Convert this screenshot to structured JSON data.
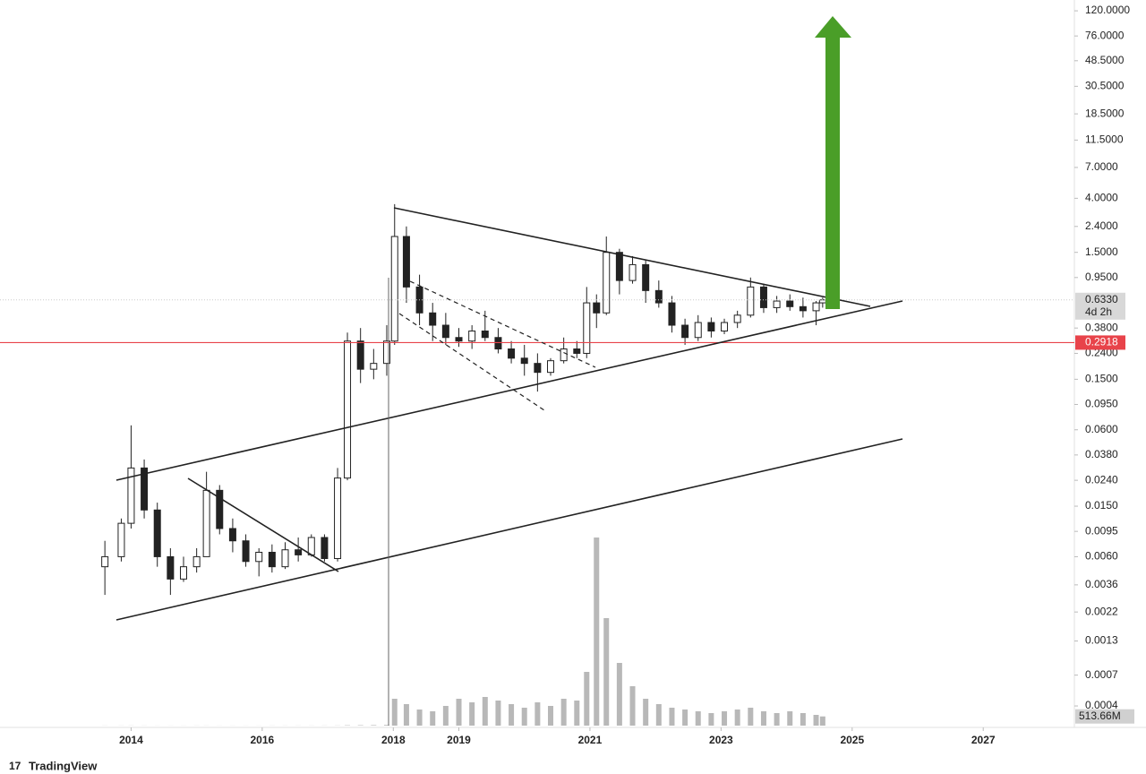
{
  "chart_data": {
    "type": "candlestick",
    "log_y": true,
    "grid": false,
    "up_color": "#ffffff",
    "down_color": "#222222",
    "volume_color": "#b8b8b8",
    "x": [
      2013.6,
      2013.85,
      2014.0,
      2014.2,
      2014.4,
      2014.6,
      2014.8,
      2015.0,
      2015.15,
      2015.35,
      2015.55,
      2015.75,
      2015.95,
      2016.15,
      2016.35,
      2016.55,
      2016.75,
      2016.95,
      2017.15,
      2017.3,
      2017.5,
      2017.7,
      2017.9,
      2018.02,
      2018.2,
      2018.4,
      2018.6,
      2018.8,
      2019.0,
      2019.2,
      2019.4,
      2019.6,
      2019.8,
      2020.0,
      2020.2,
      2020.4,
      2020.6,
      2020.8,
      2020.95,
      2021.1,
      2021.25,
      2021.45,
      2021.65,
      2021.85,
      2022.05,
      2022.25,
      2022.45,
      2022.65,
      2022.85,
      2023.05,
      2023.25,
      2023.45,
      2023.65,
      2023.85,
      2024.05,
      2024.25,
      2024.45,
      2024.55
    ],
    "open": [
      0.005,
      0.006,
      0.011,
      0.03,
      0.014,
      0.006,
      0.004,
      0.005,
      0.006,
      0.02,
      0.01,
      0.008,
      0.0055,
      0.0065,
      0.005,
      0.0068,
      0.0062,
      0.0085,
      0.0058,
      0.025,
      0.3,
      0.18,
      0.2,
      0.3,
      2.0,
      0.8,
      0.5,
      0.4,
      0.32,
      0.3,
      0.36,
      0.32,
      0.26,
      0.22,
      0.2,
      0.17,
      0.21,
      0.26,
      0.24,
      0.6,
      0.5,
      1.5,
      0.9,
      1.2,
      0.75,
      0.6,
      0.4,
      0.32,
      0.42,
      0.36,
      0.42,
      0.48,
      0.8,
      0.55,
      0.62,
      0.56,
      0.52,
      0.6
    ],
    "high": [
      0.008,
      0.012,
      0.065,
      0.035,
      0.016,
      0.007,
      0.006,
      0.007,
      0.028,
      0.022,
      0.012,
      0.009,
      0.007,
      0.0075,
      0.0078,
      0.0085,
      0.009,
      0.009,
      0.03,
      0.35,
      0.38,
      0.26,
      0.4,
      3.6,
      2.4,
      1.0,
      0.6,
      0.5,
      0.38,
      0.4,
      0.52,
      0.38,
      0.3,
      0.28,
      0.24,
      0.22,
      0.32,
      0.3,
      0.8,
      0.7,
      2.0,
      1.6,
      1.4,
      1.3,
      0.9,
      0.68,
      0.45,
      0.48,
      0.46,
      0.45,
      0.52,
      0.95,
      0.85,
      0.68,
      0.7,
      0.66,
      0.62,
      0.66
    ],
    "low": [
      0.003,
      0.0055,
      0.01,
      0.012,
      0.005,
      0.003,
      0.0038,
      0.0045,
      0.006,
      0.009,
      0.0065,
      0.005,
      0.0042,
      0.0045,
      0.0048,
      0.0055,
      0.006,
      0.0055,
      0.0055,
      0.024,
      0.14,
      0.15,
      0.16,
      0.28,
      0.6,
      0.4,
      0.3,
      0.28,
      0.27,
      0.26,
      0.3,
      0.24,
      0.2,
      0.16,
      0.12,
      0.16,
      0.2,
      0.22,
      0.22,
      0.38,
      0.48,
      0.7,
      0.85,
      0.6,
      0.55,
      0.35,
      0.28,
      0.3,
      0.32,
      0.34,
      0.38,
      0.46,
      0.5,
      0.5,
      0.52,
      0.46,
      0.4,
      0.55
    ],
    "close": [
      0.006,
      0.011,
      0.03,
      0.014,
      0.006,
      0.004,
      0.005,
      0.006,
      0.02,
      0.01,
      0.008,
      0.0055,
      0.0065,
      0.005,
      0.0068,
      0.0062,
      0.0085,
      0.0058,
      0.025,
      0.3,
      0.18,
      0.2,
      0.3,
      2.0,
      0.8,
      0.5,
      0.4,
      0.32,
      0.3,
      0.36,
      0.32,
      0.26,
      0.22,
      0.2,
      0.17,
      0.21,
      0.26,
      0.24,
      0.6,
      0.5,
      1.5,
      0.9,
      1.2,
      0.75,
      0.6,
      0.4,
      0.32,
      0.42,
      0.36,
      0.42,
      0.48,
      0.8,
      0.55,
      0.62,
      0.56,
      0.52,
      0.6,
      0.633
    ],
    "volume": [
      5,
      5,
      6,
      5,
      4,
      4,
      4,
      5,
      5,
      4,
      4,
      4,
      4,
      5,
      5,
      5,
      5,
      6,
      8,
      20,
      25,
      30,
      40,
      1500,
      1200,
      900,
      800,
      1100,
      1500,
      1300,
      1600,
      1400,
      1200,
      1000,
      1300,
      1100,
      1500,
      1400,
      3000,
      10500,
      6000,
      3500,
      2200,
      1500,
      1200,
      1000,
      900,
      800,
      700,
      800,
      900,
      1000,
      800,
      700,
      800,
      700,
      600,
      513.66
    ],
    "vlim": [
      0,
      11000
    ],
    "volume_label": {
      "value": 513.66,
      "label": "513.66M"
    },
    "xlim": [
      2012.0,
      2028.39
    ],
    "xticks": [
      2014,
      2016,
      2018,
      2019,
      2021,
      2023,
      2025,
      2027
    ],
    "ylim": [
      0.00028,
      146
    ],
    "yticks": [
      {
        "value": 120,
        "label": "120.0000"
      },
      {
        "value": 76,
        "label": "76.0000"
      },
      {
        "value": 48.5,
        "label": "48.5000"
      },
      {
        "value": 30.5,
        "label": "30.5000"
      },
      {
        "value": 18.5,
        "label": "18.5000"
      },
      {
        "value": 11.5,
        "label": "11.5000"
      },
      {
        "value": 7,
        "label": "7.0000"
      },
      {
        "value": 4,
        "label": "4.0000"
      },
      {
        "value": 2.4,
        "label": "2.4000"
      },
      {
        "value": 1.5,
        "label": "1.5000"
      },
      {
        "value": 0.95,
        "label": "0.9500"
      },
      {
        "value": 0.38,
        "label": "0.3800"
      },
      {
        "value": 0.24,
        "label": "0.2400"
      },
      {
        "value": 0.15,
        "label": "0.1500"
      },
      {
        "value": 0.095,
        "label": "0.0950"
      },
      {
        "value": 0.06,
        "label": "0.0600"
      },
      {
        "value": 0.038,
        "label": "0.0380"
      },
      {
        "value": 0.024,
        "label": "0.0240"
      },
      {
        "value": 0.015,
        "label": "0.0150"
      },
      {
        "value": 0.0095,
        "label": "0.0095"
      },
      {
        "value": 0.006,
        "label": "0.0060"
      },
      {
        "value": 0.0036,
        "label": "0.0036"
      },
      {
        "value": 0.0022,
        "label": "0.0022"
      },
      {
        "value": 0.0013,
        "label": "0.0013"
      },
      {
        "value": 0.0007,
        "label": "0.0007"
      },
      {
        "value": 0.0004,
        "label": "0.0004"
      }
    ],
    "last_price": {
      "value": 0.633,
      "label": "0.6330",
      "countdown": "4d 2h"
    },
    "price_line": {
      "value": 0.2918,
      "label": "0.2918",
      "color": "#e8434a"
    },
    "watermark": "TradingView"
  }
}
